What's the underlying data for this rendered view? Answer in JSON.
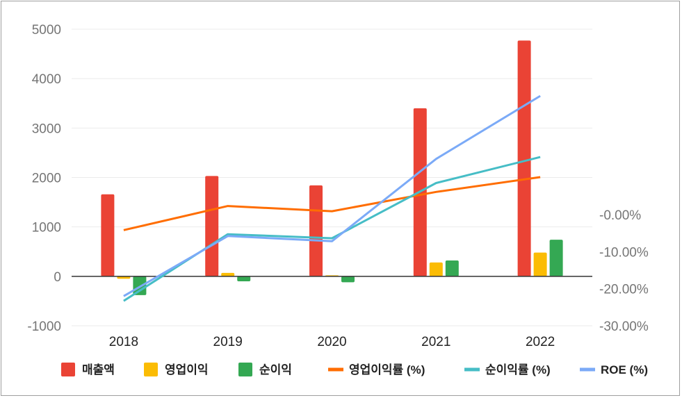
{
  "chart_data": {
    "type": "bar",
    "categories": [
      "2018",
      "2019",
      "2020",
      "2021",
      "2022"
    ],
    "series": [
      {
        "name": "매출액",
        "type": "bar",
        "axis": "left",
        "color": "#ea4335",
        "values": [
          1660,
          2030,
          1840,
          3400,
          4770
        ]
      },
      {
        "name": "영업이익",
        "type": "bar",
        "axis": "left",
        "color": "#fbbc04",
        "values": [
          -50,
          70,
          20,
          280,
          480
        ]
      },
      {
        "name": "순이익",
        "type": "bar",
        "axis": "left",
        "color": "#34a853",
        "values": [
          -380,
          -100,
          -120,
          320,
          740
        ]
      },
      {
        "name": "영업이익률 (%)",
        "type": "line",
        "axis": "right",
        "color": "#ff6d01",
        "values": [
          -4.2,
          2.3,
          0.9,
          6.1,
          10.1
        ]
      },
      {
        "name": "순이익률 (%)",
        "type": "line",
        "axis": "right",
        "color": "#46bdc6",
        "values": [
          -23.3,
          -5.3,
          -6.4,
          8.5,
          15.5
        ]
      },
      {
        "name": "ROE (%)",
        "type": "line",
        "axis": "right",
        "color": "#7baaf7",
        "values": [
          -22.0,
          -5.8,
          -7.2,
          15.0,
          32.0
        ]
      }
    ],
    "left_axis": {
      "min": -1000,
      "max": 5000,
      "ticks": [
        5000,
        4000,
        3000,
        2000,
        1000,
        0,
        -1000
      ]
    },
    "right_axis": {
      "min": -30,
      "max": 50,
      "ticks": [
        0,
        -10,
        -20,
        -30
      ],
      "tick_labels": [
        "-0.00%",
        "-10.00%",
        "-20.00%",
        "-30.00%"
      ]
    },
    "grid": true,
    "legend_position": "bottom"
  }
}
